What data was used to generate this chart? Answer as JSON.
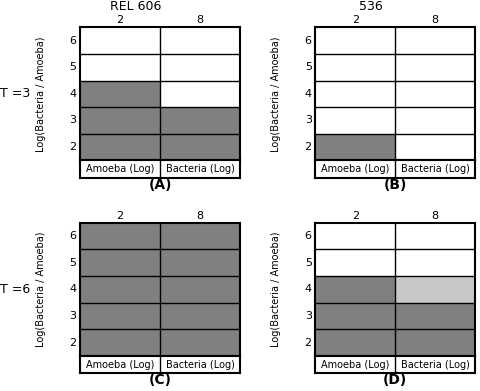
{
  "panels": [
    {
      "label": "A",
      "title": "REL 606",
      "t_label": "T =3",
      "grid": {
        "6": [
          "white",
          "white"
        ],
        "5": [
          "white",
          "white"
        ],
        "4": [
          "#808080",
          "white"
        ],
        "3": [
          "#808080",
          "#808080"
        ],
        "2": [
          "#808080",
          "#808080"
        ]
      }
    },
    {
      "label": "B",
      "title": "536",
      "t_label": "",
      "grid": {
        "6": [
          "white",
          "white"
        ],
        "5": [
          "white",
          "white"
        ],
        "4": [
          "white",
          "white"
        ],
        "3": [
          "white",
          "white"
        ],
        "2": [
          "#808080",
          "white"
        ]
      }
    },
    {
      "label": "C",
      "title": "",
      "t_label": "T =6",
      "grid": {
        "6": [
          "#808080",
          "#808080"
        ],
        "5": [
          "#808080",
          "#808080"
        ],
        "4": [
          "#808080",
          "#808080"
        ],
        "3": [
          "#808080",
          "#808080"
        ],
        "2": [
          "#808080",
          "#808080"
        ]
      }
    },
    {
      "label": "D",
      "title": "",
      "t_label": "",
      "grid": {
        "6": [
          "white",
          "white"
        ],
        "5": [
          "white",
          "white"
        ],
        "4": [
          "#808080",
          "#c8c8c8"
        ],
        "3": [
          "#808080",
          "#808080"
        ],
        "2": [
          "#808080",
          "#808080"
        ]
      }
    }
  ],
  "rows": [
    "6",
    "5",
    "4",
    "3",
    "2"
  ],
  "col_labels_top": [
    "2",
    "8"
  ],
  "col_labels_bot": [
    "Amoeba (Log)",
    "Bacteria (Log)"
  ],
  "ylabel": "Log(Bacteria / Amoeba)",
  "title_fontsize": 9,
  "label_fontsize": 7,
  "tick_fontsize": 8,
  "t_fontsize": 9,
  "panel_label_fontsize": 10,
  "background": "white"
}
